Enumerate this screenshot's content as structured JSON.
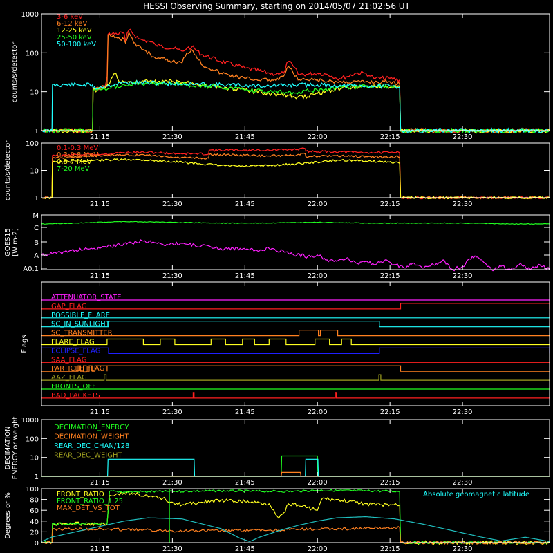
{
  "title": "HESSI Observing Summary, starting on 2014/05/07 21:02:56 UT",
  "time_axis": {
    "start_min": 1262.93,
    "end_min": 1368,
    "tick_minutes": [
      1275,
      1290,
      1305,
      1320,
      1335,
      1350
    ],
    "tick_labels": [
      "21:15",
      "21:30",
      "21:45",
      "22:00",
      "22:15",
      "22:30"
    ]
  },
  "chart_data": [
    {
      "type": "line",
      "ylabel": "counts/s/detector",
      "yscale": "log",
      "ylim": [
        1,
        1000
      ],
      "y_tick_labels": [
        "1",
        "10",
        "100",
        "1000"
      ],
      "series": [
        {
          "name": "3-6 keV",
          "color": "#ff2020",
          "x": [
            1262.93,
            1273.5,
            1273.6,
            1276,
            1276.5,
            1276.7,
            1280,
            1280.3,
            1281,
            1283,
            1284,
            1285.5,
            1286.5,
            1287.5,
            1290,
            1292,
            1293,
            1294,
            1296,
            1300,
            1305,
            1310,
            1312,
            1313,
            1314,
            1315,
            1316,
            1318,
            1320,
            1322,
            1323,
            1324,
            1326,
            1328,
            1330,
            1331,
            1332,
            1335,
            1337,
            1337.2,
            1368
          ],
          "y": [
            1,
            1,
            12,
            12,
            25,
            300,
            320,
            200,
            380,
            230,
            210,
            190,
            160,
            150,
            130,
            110,
            130,
            140,
            90,
            60,
            40,
            30,
            28,
            30,
            60,
            45,
            28,
            28,
            30,
            28,
            25,
            22,
            24,
            30,
            30,
            25,
            22,
            22,
            20,
            1,
            1
          ]
        },
        {
          "name": "6-12 keV",
          "color": "#ff8020",
          "x": [
            1262.93,
            1273.5,
            1273.6,
            1276.5,
            1276.7,
            1280,
            1280.3,
            1281,
            1282,
            1284,
            1286,
            1287.5,
            1290,
            1292,
            1293,
            1294,
            1296,
            1300,
            1305,
            1310,
            1312,
            1313,
            1314,
            1315,
            1316,
            1318,
            1320,
            1322,
            1324,
            1326,
            1330,
            1335,
            1337,
            1337.2,
            1368
          ],
          "y": [
            1,
            1,
            12,
            14,
            280,
            220,
            180,
            330,
            180,
            120,
            80,
            70,
            60,
            55,
            100,
            120,
            50,
            30,
            22,
            20,
            20,
            25,
            45,
            30,
            20,
            20,
            20,
            18,
            18,
            18,
            18,
            18,
            16,
            1,
            1
          ]
        },
        {
          "name": "12-25 keV",
          "color": "#ffff20",
          "x": [
            1262.93,
            1273.5,
            1273.6,
            1276,
            1277,
            1278,
            1279,
            1280,
            1282,
            1285,
            1290,
            1295,
            1300,
            1305,
            1310,
            1315,
            1318,
            1320,
            1323,
            1326,
            1330,
            1335,
            1337,
            1337.2,
            1368
          ],
          "y": [
            1,
            1,
            11,
            12,
            16,
            30,
            18,
            18,
            17,
            18,
            18,
            16,
            13,
            11,
            9,
            7.5,
            7.5,
            9,
            11,
            13,
            14,
            13,
            13,
            1,
            1
          ]
        },
        {
          "name": "25-50 keV",
          "color": "#20ff20",
          "x": [
            1262.93,
            1273.5,
            1273.6,
            1276,
            1280,
            1285,
            1290,
            1295,
            1300,
            1305,
            1310,
            1315,
            1320,
            1325,
            1330,
            1335,
            1337,
            1337.2,
            1368
          ],
          "y": [
            1,
            1,
            11,
            12,
            15,
            16,
            16,
            14,
            13,
            11,
            10,
            9.5,
            11,
            13,
            14,
            14,
            13,
            1,
            1
          ]
        },
        {
          "name": "50-100 keV",
          "color": "#20ffff",
          "x": [
            1262.93,
            1265.1,
            1265.2,
            1273.5,
            1273.6,
            1276,
            1280,
            1285,
            1290,
            1300,
            1310,
            1316,
            1320,
            1325,
            1330,
            1335,
            1337,
            1337.2,
            1368
          ],
          "y": [
            1,
            1,
            15,
            15,
            12,
            14,
            17,
            17,
            16,
            15,
            14,
            15,
            15,
            14,
            14,
            14,
            13,
            1,
            1
          ]
        }
      ]
    },
    {
      "type": "line",
      "ylabel": "counts/s/detector",
      "yscale": "log",
      "ylim": [
        1,
        100
      ],
      "y_tick_labels": [
        "1",
        "10",
        "100"
      ],
      "series": [
        {
          "name": "0.1-0.3 MeV",
          "color": "#ff2020",
          "x": [
            1262.93,
            1265.1,
            1265.2,
            1276,
            1280,
            1285,
            1290,
            1297.5,
            1297.6,
            1305,
            1310,
            1315,
            1317.5,
            1317.6,
            1325,
            1330,
            1336,
            1336.5,
            1337,
            1337.2,
            1368
          ],
          "y": [
            1,
            1,
            35,
            40,
            45,
            46,
            42,
            40,
            55,
            55,
            55,
            58,
            62,
            50,
            48,
            45,
            45,
            50,
            45,
            1,
            1
          ]
        },
        {
          "name": "0.3-0.8 MeV",
          "color": "#ff8020",
          "x": [
            1262.93,
            1265.1,
            1265.2,
            1270,
            1276,
            1280,
            1285,
            1290,
            1297.5,
            1297.6,
            1305,
            1310,
            1315,
            1317.5,
            1317.6,
            1325,
            1330,
            1336,
            1336.5,
            1337,
            1337.2,
            1368
          ],
          "y": [
            1,
            1,
            28,
            32,
            36,
            36,
            36,
            30,
            28,
            38,
            36,
            34,
            36,
            40,
            32,
            34,
            32,
            30,
            35,
            30,
            1,
            1
          ]
        },
        {
          "name": "0.8-7 MeV",
          "color": "#ffff20",
          "x": [
            1262.93,
            1265.1,
            1265.2,
            1270,
            1276,
            1282,
            1288,
            1295,
            1300,
            1305,
            1310,
            1315,
            1320,
            1325,
            1330,
            1336,
            1337,
            1337.2,
            1368
          ],
          "y": [
            1,
            1,
            20,
            22,
            24,
            25,
            22,
            18,
            15,
            14,
            15,
            17,
            20,
            24,
            22,
            20,
            18,
            1,
            1
          ]
        },
        {
          "name": "7-20 MeV",
          "color": "#20ff20",
          "x": [],
          "y": []
        }
      ]
    },
    {
      "type": "line",
      "ylabel": "GOES15 [W m-2]",
      "y_tick_labels": [
        "A0.1",
        "A",
        "B",
        "C",
        "M"
      ],
      "series": [
        {
          "name": "",
          "color": "#20ff20",
          "x": [
            1262.93,
            1270,
            1280,
            1290,
            1300,
            1310,
            1320,
            1330,
            1340,
            1350,
            1360,
            1368
          ],
          "y": [
            -6.1,
            -6.05,
            -5.95,
            -6.0,
            -6.05,
            -6.05,
            -6.0,
            -6.05,
            -6.05,
            -6.05,
            -6.1,
            -6.1
          ]
        },
        {
          "name": "",
          "color": "#ff20ff",
          "x": [
            1262.93,
            1266,
            1270,
            1275,
            1280,
            1284,
            1288,
            1292,
            1296,
            1300,
            1304,
            1306,
            1308,
            1310,
            1314,
            1318,
            1320,
            1322,
            1324,
            1326,
            1328,
            1330,
            1332,
            1334,
            1336,
            1338,
            1340,
            1342,
            1344,
            1346,
            1348,
            1350,
            1352,
            1354,
            1356,
            1358,
            1360,
            1362,
            1364,
            1366,
            1368
          ],
          "y": [
            -8,
            -7.9,
            -7.7,
            -7.6,
            -7.3,
            -7.15,
            -7.35,
            -7.3,
            -7.45,
            -7.6,
            -7.6,
            -7.7,
            -7.75,
            -7.6,
            -7.9,
            -8.1,
            -8.0,
            -8.3,
            -8.4,
            -8.2,
            -8.5,
            -8.4,
            -8.6,
            -8.3,
            -8.6,
            -8.8,
            -8.5,
            -8.8,
            -8.6,
            -8.3,
            -8.9,
            -8.7,
            -8.1,
            -8.3,
            -8.9,
            -8.7,
            -8.9,
            -8.5,
            -8.9,
            -8.6,
            -8.9
          ]
        }
      ]
    },
    {
      "type": "line",
      "ylabel": "Flags",
      "flags": [
        {
          "name": "ATTENUATOR_STATE",
          "color": "#ff20ff",
          "intervals": []
        },
        {
          "name": "GAP_FLAG",
          "color": "#ff2020",
          "intervals": [
            [
              1337.2,
              1368
            ]
          ]
        },
        {
          "name": "POSSIBLE_FLARE",
          "color": "#20ffff",
          "intervals": []
        },
        {
          "name": "SC_IN_SUNLIGHT",
          "color": "#20ffff",
          "intervals": [
            [
              1276.8,
              1332.8
            ]
          ]
        },
        {
          "name": "SC_TRANSMITTER",
          "color": "#ff8020",
          "intervals": [
            [
              1316.2,
              1320.2
            ],
            [
              1320.6,
              1324.2
            ]
          ]
        },
        {
          "name": "FLARE_FLAG",
          "color": "#ffff20",
          "intervals": [
            [
              1276.5,
              1284
            ],
            [
              1287.5,
              1290.5
            ],
            [
              1298,
              1301
            ],
            [
              1304.5,
              1307
            ],
            [
              1310,
              1313.5
            ],
            [
              1319.5,
              1322.5
            ],
            [
              1325,
              1327
            ]
          ]
        },
        {
          "name": "ECLIPSE_FLAG",
          "color": "#2020ff",
          "intervals": [
            [
              1262.93,
              1276.8
            ],
            [
              1332.8,
              1368
            ]
          ]
        },
        {
          "name": "SAA_FLAG",
          "color": "#ff2020",
          "intervals": []
        },
        {
          "name": "PARTICLE_FLAG",
          "color": "#ff8020",
          "intervals": [
            [
              1270.5,
              1271
            ],
            [
              1271.6,
              1272.2
            ],
            [
              1272.8,
              1273.4
            ],
            [
              1274,
              1276.5
            ],
            [
              1276.5,
              1337.2
            ]
          ]
        },
        {
          "name": "AAZ_FLAG",
          "color": "#a0a020",
          "intervals": [
            [
              1275.9,
              1276.3
            ],
            [
              1332.7,
              1333.1
            ]
          ]
        },
        {
          "name": "FRONTS_OFF",
          "color": "#20ff20",
          "intervals": []
        },
        {
          "name": "BAD_PACKETS",
          "color": "#ff2020",
          "intervals": [
            [
              1294.3,
              1294.5
            ],
            [
              1323.7,
              1323.9
            ]
          ]
        }
      ]
    },
    {
      "type": "line",
      "ylabel": "DECIMATION ENERGY or weight",
      "yscale": "log",
      "ylim": [
        1,
        1000
      ],
      "y_tick_labels": [
        "1",
        "10",
        "100",
        "1000"
      ],
      "series": [
        {
          "name": "DECIMATION_ENERGY",
          "color": "#20ff20",
          "x": [
            1262.93,
            1312.5,
            1312.6,
            1320,
            1320.1,
            1368
          ],
          "y": [
            1,
            1,
            12,
            12,
            1,
            1
          ]
        },
        {
          "name": "DECIMATION_WEIGHT",
          "color": "#ff8020",
          "x": [
            1262.93,
            1312.5,
            1312.6,
            1316.5,
            1316.6,
            1320,
            1320.1,
            1368
          ],
          "y": [
            1,
            1,
            1.6,
            1.6,
            1,
            1,
            1,
            1
          ]
        },
        {
          "name": "REAR_DEC_CHAN/128",
          "color": "#20ffff",
          "x": [
            1262.93,
            1276.6,
            1276.7,
            1294.5,
            1294.6,
            1317.5,
            1317.6,
            1320.1,
            1320.2,
            1333,
            1333.1,
            1368
          ],
          "y": [
            1,
            1,
            8,
            8,
            1,
            1,
            8,
            8,
            1,
            1,
            1,
            1
          ]
        },
        {
          "name": "REAR_DEC_WEIGHT",
          "color": "#a0a020",
          "x": [
            1262.93,
            1368
          ],
          "y": [
            1,
            1
          ]
        }
      ]
    },
    {
      "type": "line",
      "ylabel": "Degrees or %",
      "ylim": [
        0,
        100
      ],
      "y_tick_labels": [
        "0",
        "20",
        "40",
        "60",
        "80",
        "100"
      ],
      "annotation": "Absolute geomagnetic latitude",
      "series": [
        {
          "name": "FRONT_RATIO",
          "color": "#ffff20",
          "x": [
            1262.93,
            1265.1,
            1265.2,
            1276.5,
            1277,
            1280,
            1283,
            1285,
            1288,
            1290,
            1292,
            1296,
            1300,
            1305,
            1310,
            1311,
            1312,
            1313,
            1314,
            1316,
            1318,
            1320,
            1321,
            1325,
            1330,
            1333,
            1337,
            1337.2,
            1368
          ],
          "y": [
            0,
            0,
            35,
            35,
            88,
            92,
            90,
            85,
            82,
            75,
            70,
            75,
            78,
            76,
            72,
            60,
            45,
            55,
            72,
            70,
            65,
            60,
            82,
            78,
            72,
            70,
            70,
            0,
            0
          ]
        },
        {
          "name": "FRONT_RATIO_1.25",
          "color": "#20ff20",
          "x": [
            1262.93,
            1265.1,
            1265.2,
            1276.5,
            1277,
            1280,
            1290,
            1300,
            1310,
            1315,
            1320,
            1330,
            1337,
            1337.2,
            1368
          ],
          "y": [
            0,
            0,
            35,
            35,
            95,
            94,
            95,
            96,
            95,
            95,
            97,
            96,
            95,
            0,
            0
          ]
        },
        {
          "name": "MAX_DET_VS_TOT",
          "color": "#ff8020",
          "x": [
            1262.93,
            1265.1,
            1265.2,
            1276,
            1280,
            1290,
            1300,
            1310,
            1320,
            1330,
            1337,
            1337.2,
            1368
          ],
          "y": [
            0,
            0,
            25,
            25,
            24,
            22,
            22,
            23,
            25,
            26,
            28,
            0,
            0
          ]
        },
        {
          "name": "",
          "color": "#20c0c0",
          "x": [
            1262.93,
            1265,
            1270,
            1275,
            1280,
            1285,
            1292,
            1300,
            1304,
            1306,
            1308,
            1312,
            1316,
            1320,
            1324,
            1330,
            1336,
            1342,
            1348,
            1354,
            1358,
            1363,
            1368
          ],
          "y": [
            2,
            10,
            20,
            30,
            40,
            46,
            44,
            26,
            8,
            2,
            10,
            22,
            32,
            40,
            46,
            48,
            44,
            34,
            22,
            10,
            3,
            10,
            2
          ]
        }
      ]
    }
  ]
}
